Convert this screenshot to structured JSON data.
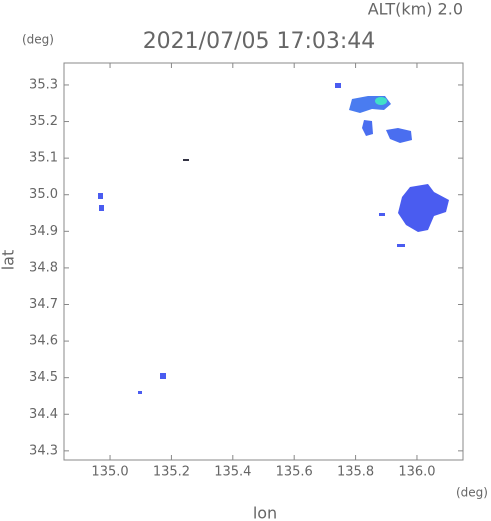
{
  "chart_data": {
    "type": "map",
    "title": "2021/07/05 17:03:44",
    "subtitle": "ALT(km) 2.0",
    "x_label": "lon",
    "y_label": "lat",
    "x_unit": "(deg)",
    "y_unit": "(deg)",
    "xlim": [
      134.85,
      136.15
    ],
    "ylim": [
      34.275,
      35.36
    ],
    "xticks": [
      {
        "value": 135,
        "label": "135.0"
      },
      135.2,
      135.4,
      135.6,
      135.8,
      {
        "value": 136,
        "label": "136.0"
      }
    ],
    "yticks": [
      34.3,
      34.4,
      34.5,
      34.6,
      34.7,
      34.8,
      34.9,
      {
        "value": 35,
        "label": "35.0"
      },
      35.1,
      35.2,
      35.3
    ]
  }
}
